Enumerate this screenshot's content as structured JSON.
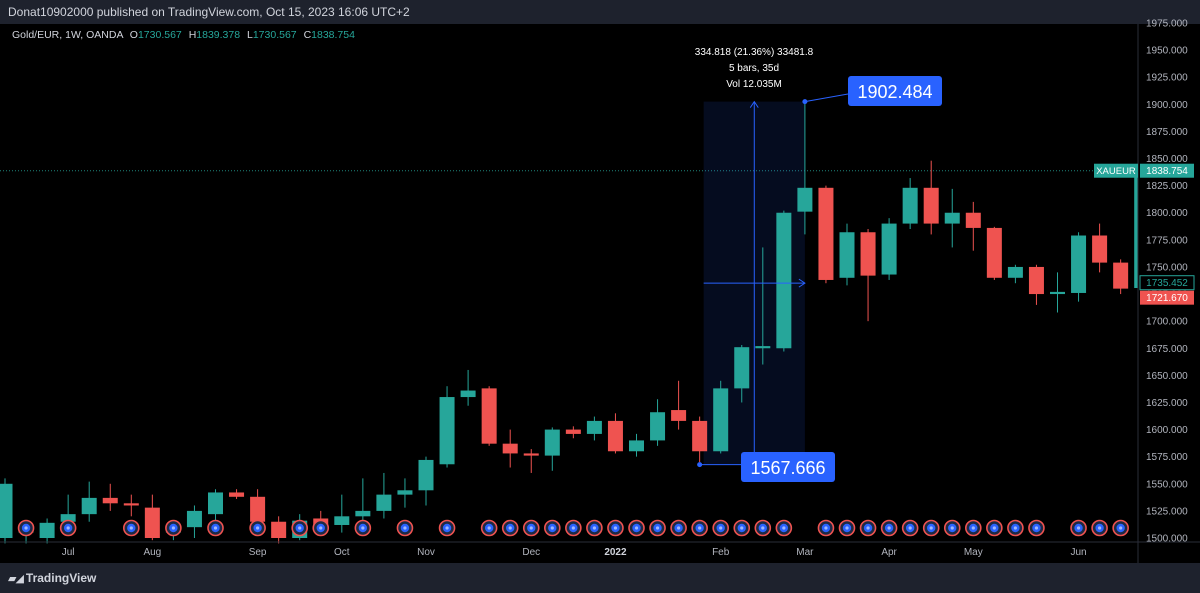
{
  "header": {
    "published": "Donat10902000 published on TradingView.com, Oct 15, 2023 16:06 UTC+2"
  },
  "legend": {
    "symbol": "Gold/EUR, 1W, OANDA",
    "o_label": "O",
    "o_value": "1730.567",
    "h_label": "H",
    "h_value": "1839.378",
    "l_label": "L",
    "l_value": "1730.567",
    "c_label": "C",
    "c_value": "1838.754"
  },
  "footer": {
    "brand": "TradingView"
  },
  "colors": {
    "up": "#26a69a",
    "down": "#ef5350",
    "accent": "#2962ff",
    "background": "#000000"
  },
  "price_labels": {
    "xaueur_name": "XAUEUR",
    "xaueur_value": "1838.754",
    "mid_value": "1735.452",
    "red_value": "1721.670"
  },
  "measure": {
    "line1": "334.818 (21.36%) 33481.8",
    "line2": "5 bars, 35d",
    "line3": "Vol 12.035M",
    "high_label": "1902.484",
    "low_label": "1567.666"
  },
  "chart_data": {
    "type": "candlestick",
    "timeframe": "1W",
    "symbol": "Gold/EUR",
    "ylim": [
      1500,
      1975
    ],
    "y_ticks": [
      "1975.000",
      "1950.000",
      "1925.000",
      "1900.000",
      "1875.000",
      "1850.000",
      "1825.000",
      "1800.000",
      "1775.000",
      "1750.000",
      "1725.000",
      "1700.000",
      "1675.000",
      "1650.000",
      "1625.000",
      "1600.000",
      "1575.000",
      "1550.000",
      "1525.000",
      "1500.000"
    ],
    "x_ticks": [
      {
        "label": "Jul",
        "bar": 3
      },
      {
        "label": "Aug",
        "bar": 7
      },
      {
        "label": "Sep",
        "bar": 12
      },
      {
        "label": "Oct",
        "bar": 16
      },
      {
        "label": "Nov",
        "bar": 20
      },
      {
        "label": "Dec",
        "bar": 25
      },
      {
        "label": "2022",
        "bar": 29,
        "bold": true
      },
      {
        "label": "Feb",
        "bar": 34
      },
      {
        "label": "Mar",
        "bar": 38
      },
      {
        "label": "Apr",
        "bar": 42
      },
      {
        "label": "May",
        "bar": 46
      },
      {
        "label": "Jun",
        "bar": 51
      }
    ],
    "candles": [
      {
        "o": 1500,
        "h": 1555,
        "l": 1495,
        "c": 1550
      },
      {
        "o": 1505,
        "h": 1515,
        "l": 1495,
        "c": 1508
      },
      {
        "o": 1500,
        "h": 1518,
        "l": 1495,
        "c": 1514
      },
      {
        "o": 1515,
        "h": 1540,
        "l": 1505,
        "c": 1522
      },
      {
        "o": 1522,
        "h": 1552,
        "l": 1515,
        "c": 1537
      },
      {
        "o": 1537,
        "h": 1550,
        "l": 1525,
        "c": 1532
      },
      {
        "o": 1532,
        "h": 1540,
        "l": 1520,
        "c": 1530
      },
      {
        "o": 1528,
        "h": 1540,
        "l": 1498,
        "c": 1500
      },
      {
        "o": 1505,
        "h": 1515,
        "l": 1498,
        "c": 1512
      },
      {
        "o": 1510,
        "h": 1530,
        "l": 1500,
        "c": 1525
      },
      {
        "o": 1522,
        "h": 1545,
        "l": 1515,
        "c": 1542
      },
      {
        "o": 1542,
        "h": 1545,
        "l": 1536,
        "c": 1538
      },
      {
        "o": 1538,
        "h": 1545,
        "l": 1512,
        "c": 1515
      },
      {
        "o": 1515,
        "h": 1520,
        "l": 1495,
        "c": 1500
      },
      {
        "o": 1500,
        "h": 1522,
        "l": 1498,
        "c": 1516
      },
      {
        "o": 1518,
        "h": 1525,
        "l": 1510,
        "c": 1512
      },
      {
        "o": 1512,
        "h": 1540,
        "l": 1505,
        "c": 1520
      },
      {
        "o": 1520,
        "h": 1555,
        "l": 1510,
        "c": 1525
      },
      {
        "o": 1525,
        "h": 1560,
        "l": 1518,
        "c": 1540
      },
      {
        "o": 1540,
        "h": 1555,
        "l": 1528,
        "c": 1544
      },
      {
        "o": 1544,
        "h": 1575,
        "l": 1530,
        "c": 1572
      },
      {
        "o": 1568,
        "h": 1640,
        "l": 1565,
        "c": 1630
      },
      {
        "o": 1630,
        "h": 1655,
        "l": 1622,
        "c": 1636
      },
      {
        "o": 1638,
        "h": 1640,
        "l": 1585,
        "c": 1587
      },
      {
        "o": 1587,
        "h": 1600,
        "l": 1565,
        "c": 1578
      },
      {
        "o": 1578,
        "h": 1582,
        "l": 1560,
        "c": 1576
      },
      {
        "o": 1576,
        "h": 1602,
        "l": 1562,
        "c": 1600
      },
      {
        "o": 1600,
        "h": 1603,
        "l": 1592,
        "c": 1596
      },
      {
        "o": 1596,
        "h": 1612,
        "l": 1590,
        "c": 1608
      },
      {
        "o": 1608,
        "h": 1615,
        "l": 1578,
        "c": 1580
      },
      {
        "o": 1580,
        "h": 1596,
        "l": 1575,
        "c": 1590
      },
      {
        "o": 1590,
        "h": 1628,
        "l": 1585,
        "c": 1616
      },
      {
        "o": 1618,
        "h": 1645,
        "l": 1600,
        "c": 1608
      },
      {
        "o": 1608,
        "h": 1612,
        "l": 1570,
        "c": 1580
      },
      {
        "o": 1580,
        "h": 1645,
        "l": 1578,
        "c": 1638
      },
      {
        "o": 1638,
        "h": 1678,
        "l": 1625,
        "c": 1676
      },
      {
        "o": 1675,
        "h": 1768,
        "l": 1660,
        "c": 1677
      },
      {
        "o": 1675,
        "h": 1802,
        "l": 1672,
        "c": 1800
      },
      {
        "o": 1801,
        "h": 1902.484,
        "l": 1780,
        "c": 1823
      },
      {
        "o": 1823,
        "h": 1825,
        "l": 1735,
        "c": 1738
      },
      {
        "o": 1740,
        "h": 1790,
        "l": 1733,
        "c": 1782
      },
      {
        "o": 1782,
        "h": 1785,
        "l": 1700,
        "c": 1742
      },
      {
        "o": 1743,
        "h": 1795,
        "l": 1738,
        "c": 1790
      },
      {
        "o": 1790,
        "h": 1832,
        "l": 1785,
        "c": 1823
      },
      {
        "o": 1823,
        "h": 1848,
        "l": 1780,
        "c": 1790
      },
      {
        "o": 1790,
        "h": 1822,
        "l": 1768,
        "c": 1800
      },
      {
        "o": 1800,
        "h": 1810,
        "l": 1765,
        "c": 1786
      },
      {
        "o": 1786,
        "h": 1787,
        "l": 1738,
        "c": 1740
      },
      {
        "o": 1740,
        "h": 1752,
        "l": 1735,
        "c": 1750
      },
      {
        "o": 1750,
        "h": 1752,
        "l": 1715,
        "c": 1725
      },
      {
        "o": 1725,
        "h": 1745,
        "l": 1708,
        "c": 1727
      },
      {
        "o": 1726,
        "h": 1782,
        "l": 1718,
        "c": 1779
      },
      {
        "o": 1779,
        "h": 1790,
        "l": 1745,
        "c": 1754
      },
      {
        "o": 1754,
        "h": 1757,
        "l": 1725,
        "c": 1730
      },
      {
        "o": 1730.567,
        "h": 1839.378,
        "l": 1730.567,
        "c": 1838.754
      }
    ],
    "event_marker_bars": [
      1,
      3,
      6,
      8,
      10,
      12,
      14,
      15,
      17,
      19,
      21,
      23,
      24,
      25,
      26,
      27,
      28,
      29,
      30,
      31,
      32,
      33,
      34,
      35,
      36,
      37,
      39,
      40,
      41,
      42,
      43,
      44,
      45,
      46,
      47,
      48,
      49,
      51,
      52,
      53
    ],
    "measure_range": {
      "from_bar": 33,
      "to_bar": 38,
      "low": 1567.666,
      "high": 1902.484,
      "change": "334.818 (21.36%)",
      "bars": 5,
      "days": 35
    },
    "current_price": 1838.754
  }
}
